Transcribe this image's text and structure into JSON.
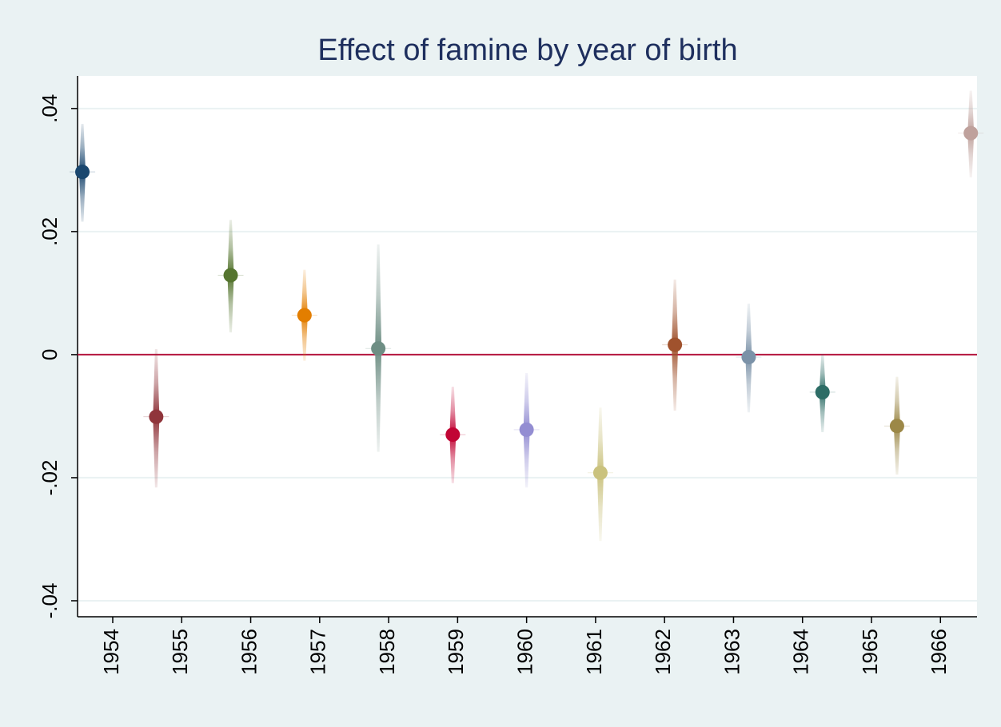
{
  "chart_data": {
    "type": "coefplot",
    "title": "Effect of famine by year of birth",
    "x": [
      1953.56,
      1954.63,
      1955.71,
      1956.78,
      1957.85,
      1958.93,
      1960.0,
      1961.07,
      1962.15,
      1963.22,
      1964.29,
      1965.37,
      1966.44
    ],
    "values": [
      0.0297,
      -0.0101,
      0.0129,
      0.0064,
      0.001,
      -0.013,
      -0.0122,
      -0.0192,
      0.0016,
      -0.0004,
      -0.0061,
      -0.0116,
      0.036
    ],
    "ci_low": [
      0.0216,
      -0.0216,
      0.0036,
      -0.001,
      -0.0158,
      -0.0209,
      -0.0216,
      -0.0303,
      -0.0091,
      -0.0094,
      -0.0126,
      -0.0195,
      0.0288
    ],
    "ci_high": [
      0.0375,
      0.0009,
      0.0219,
      0.0138,
      0.0179,
      -0.0052,
      -0.003,
      -0.0086,
      0.0122,
      0.0083,
      0.0001,
      -0.0036,
      0.0429
    ],
    "colors": [
      "#1a476f",
      "#90353b",
      "#55752f",
      "#e37e00",
      "#6e8e84",
      "#c10534",
      "#938dd2",
      "#cac27e",
      "#a0522d",
      "#7b92a8",
      "#2d6d66",
      "#9c8847",
      "#bfa19c"
    ],
    "xlim": [
      1953.49,
      1966.53
    ],
    "xticks": [
      1954,
      1955,
      1956,
      1957,
      1958,
      1959,
      1960,
      1961,
      1962,
      1963,
      1964,
      1965,
      1966
    ],
    "ylim": [
      -0.0426,
      0.0453
    ],
    "yticks": [
      {
        "value": -0.04,
        "label": "-.04"
      },
      {
        "value": -0.02,
        "label": "-.02"
      },
      0,
      {
        "value": 0.02,
        "label": ".02"
      },
      {
        "value": 0.04,
        "label": ".04"
      }
    ],
    "grid": true,
    "reference_line": 0,
    "reference_color": "#b5173f"
  }
}
